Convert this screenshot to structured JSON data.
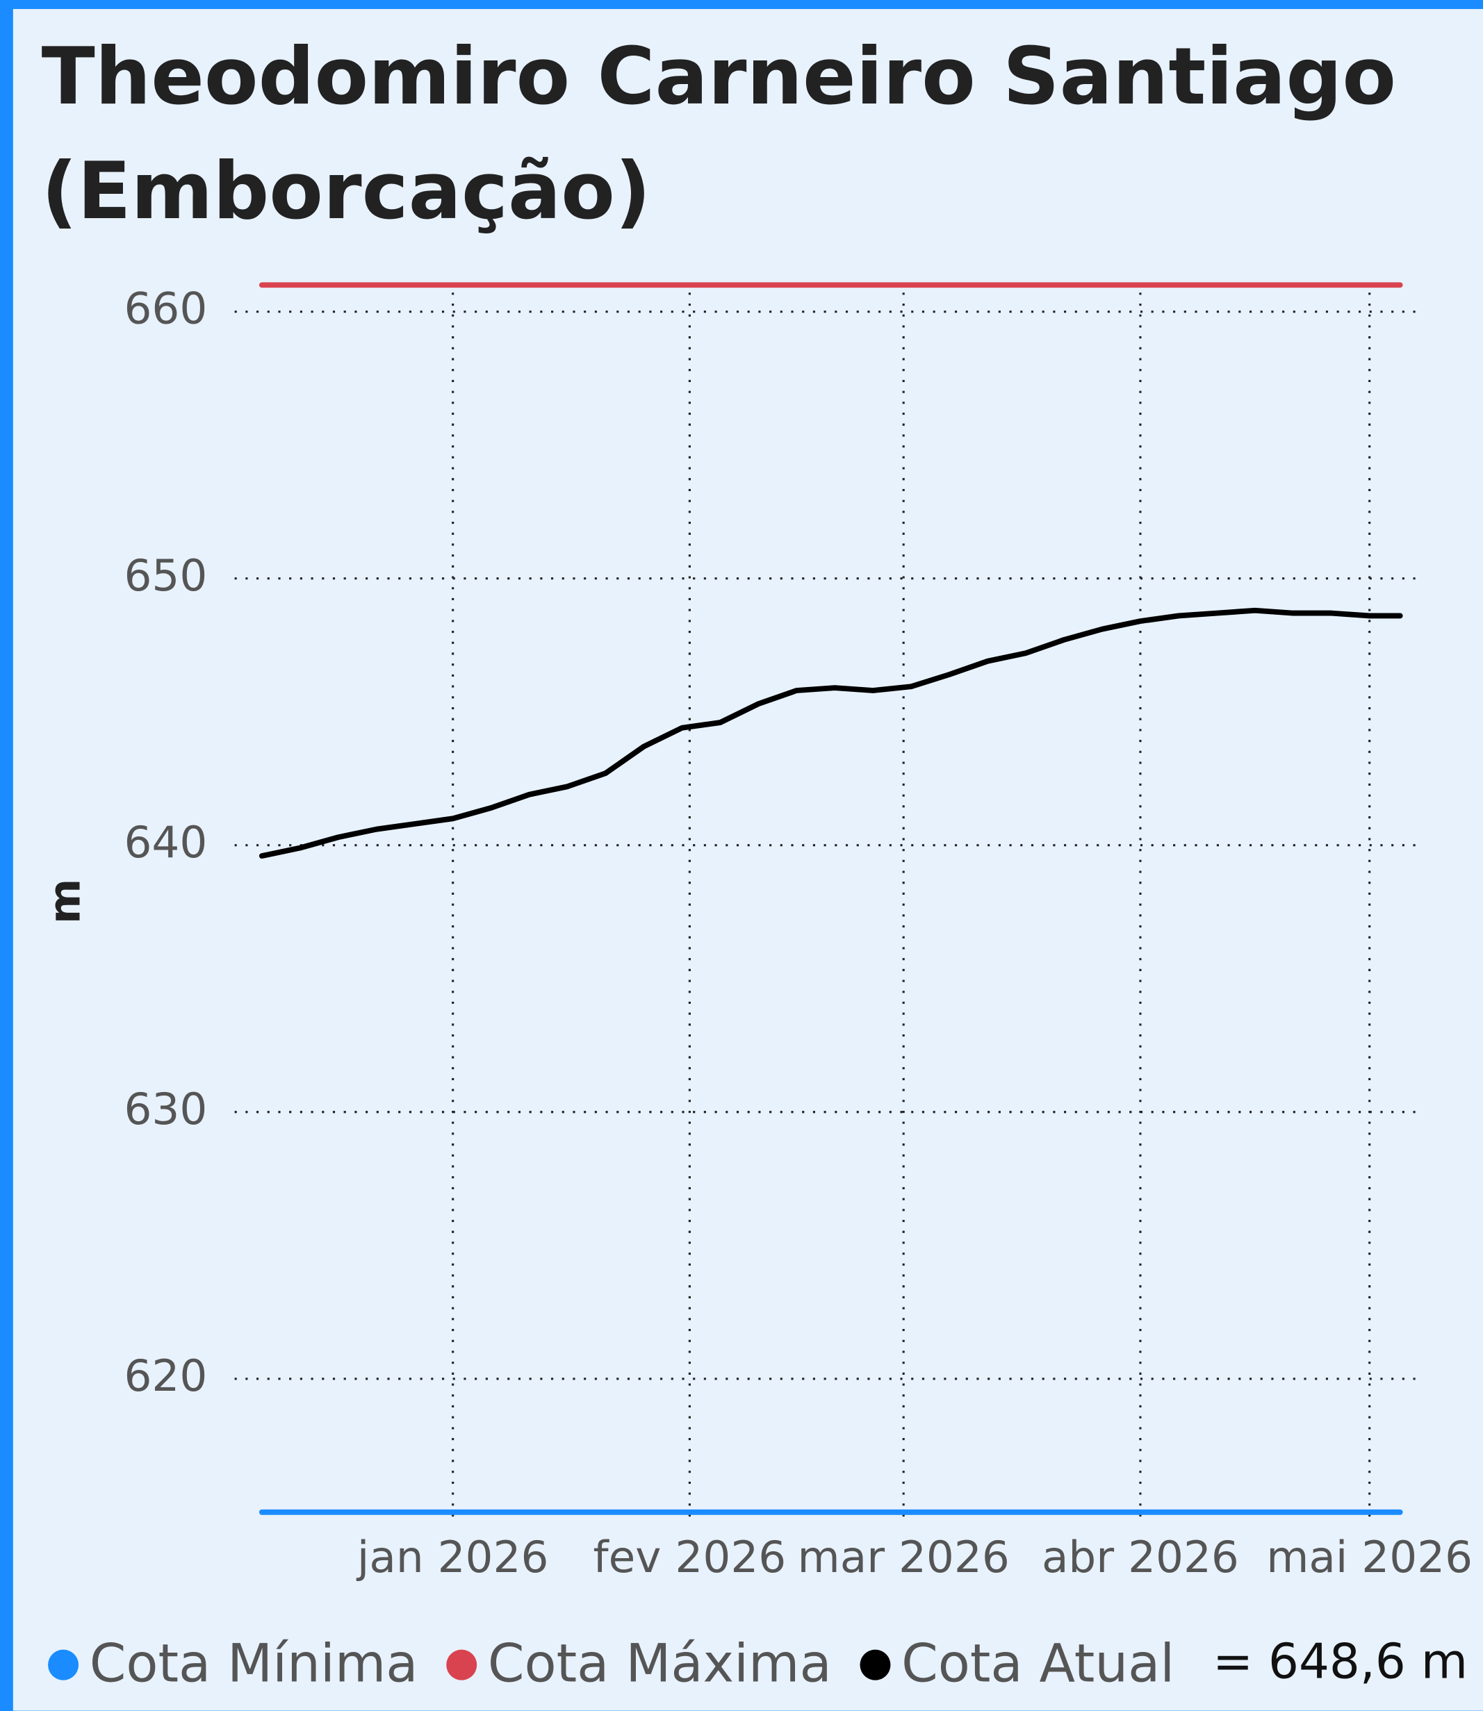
{
  "chart_data": {
    "type": "line",
    "title": "Theodomiro Carneiro Santiago (Emborcação)",
    "y_label": "m",
    "annotation": "= 648,6 m",
    "ylim": [
      615,
      661
    ],
    "yticks": [
      620,
      630,
      640,
      650,
      660
    ],
    "xlim": [
      "2025-12-07",
      "2026-05-05"
    ],
    "xticks": [
      {
        "value": "2026-01-01",
        "label": "jan 2026"
      },
      {
        "value": "2026-02-01",
        "label": "fev 2026"
      },
      {
        "value": "2026-03-01",
        "label": "mar 2026"
      },
      {
        "value": "2026-04-01",
        "label": "abr 2026"
      },
      {
        "value": "2026-05-01",
        "label": "mai 2026"
      }
    ],
    "grid": true,
    "series": [
      {
        "name": "Cota Mínima",
        "color": "#1a8cff",
        "x": [
          "2025-12-07",
          "2026-05-05"
        ],
        "values": [
          615,
          615
        ]
      },
      {
        "name": "Cota Máxima",
        "color": "#d9434f",
        "x": [
          "2025-12-07",
          "2026-05-05"
        ],
        "values": [
          661,
          661
        ]
      },
      {
        "name": "Cota Atual",
        "color": "#000000",
        "x": [
          "2025-12-07",
          "2025-12-12",
          "2025-12-17",
          "2025-12-22",
          "2025-12-27",
          "2026-01-01",
          "2026-01-06",
          "2026-01-11",
          "2026-01-16",
          "2026-01-21",
          "2026-01-26",
          "2026-01-31",
          "2026-02-05",
          "2026-02-10",
          "2026-02-15",
          "2026-02-20",
          "2026-02-25",
          "2026-03-02",
          "2026-03-07",
          "2026-03-12",
          "2026-03-17",
          "2026-03-22",
          "2026-03-27",
          "2026-04-01",
          "2026-04-06",
          "2026-04-11",
          "2026-04-16",
          "2026-04-21",
          "2026-04-26",
          "2026-05-01",
          "2026-05-05"
        ],
        "values": [
          639.6,
          639.9,
          640.3,
          640.6,
          640.8,
          641.0,
          641.4,
          641.9,
          642.2,
          642.7,
          643.7,
          644.4,
          644.6,
          645.3,
          645.8,
          645.9,
          645.8,
          645.95,
          646.4,
          646.9,
          647.2,
          647.7,
          648.1,
          648.4,
          648.6,
          648.7,
          648.8,
          648.7,
          648.7,
          648.6,
          648.6
        ]
      }
    ]
  }
}
